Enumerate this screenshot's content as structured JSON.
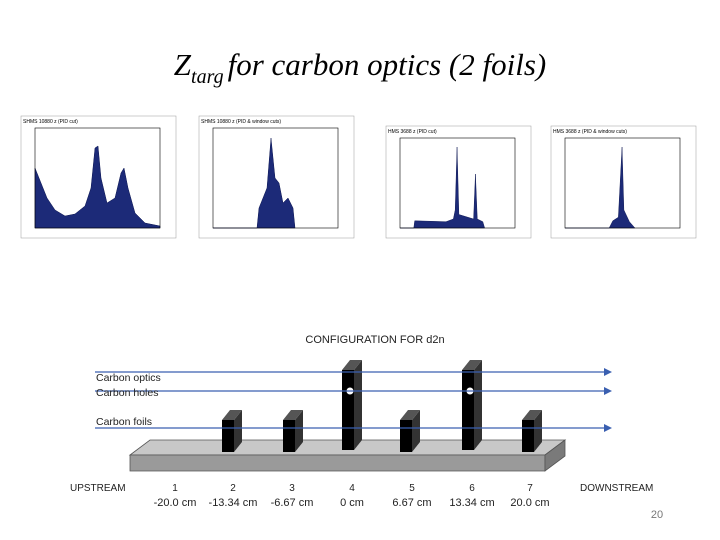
{
  "title": {
    "main": "Z",
    "subscript": "targ",
    "rest": "for carbon optics (2 foils)"
  },
  "plots": [
    {
      "title": "SHMS 10880 z (PID cut)"
    },
    {
      "title": "SHMS 10880 z (PID & window cuts)"
    },
    {
      "title": "HMS 3688 z (PID cut)"
    },
    {
      "title": "HMS 3688 z (PID & window cuts)"
    }
  ],
  "diagram": {
    "title": "CONFIGURATION FOR d2n",
    "beams": [
      "Carbon optics",
      "Carbon holes",
      "Carbon foils"
    ],
    "upstream": "UPSTREAM",
    "downstream": "DOWNSTREAM",
    "positions": [
      {
        "number": "1",
        "z": "-20.0 cm"
      },
      {
        "number": "2",
        "z": "-13.34 cm"
      },
      {
        "number": "3",
        "z": "-6.67 cm"
      },
      {
        "number": "4",
        "z": "0 cm"
      },
      {
        "number": "5",
        "z": "6.67 cm"
      },
      {
        "number": "6",
        "z": "13.34 cm"
      },
      {
        "number": "7",
        "z": "20.0 cm"
      }
    ]
  },
  "page_number": "20"
}
